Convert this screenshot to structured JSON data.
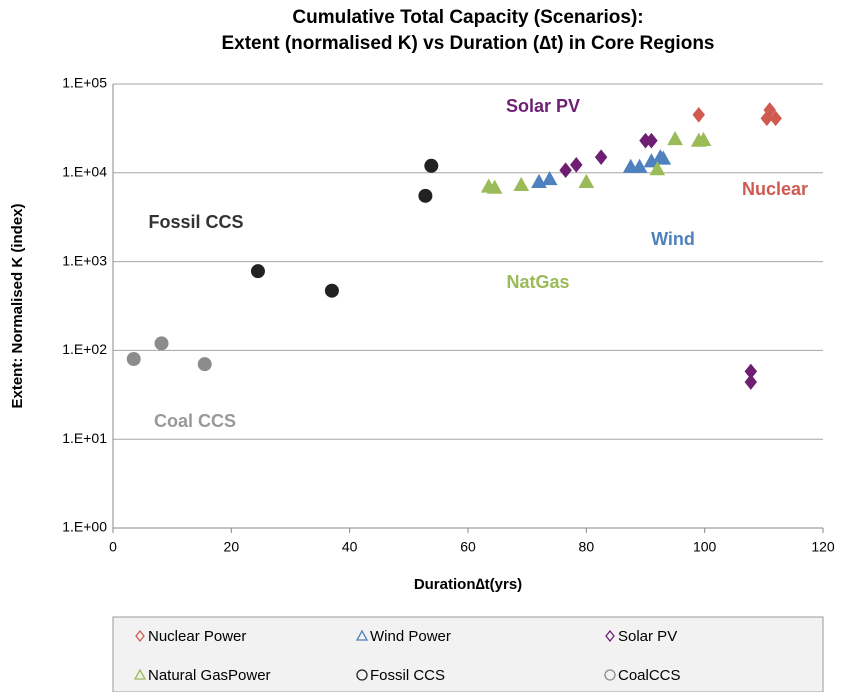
{
  "chart_data": {
    "type": "scatter",
    "title": [
      "Cumulative Total Capacity (Scenarios):",
      "Extent (normalised K) vs Duration (∆t) in Core Regions"
    ],
    "x_label": "Duration∆t(yrs)",
    "y_label": "Extent:  Normalised K (index)",
    "xlim": [
      0,
      120
    ],
    "xticks": [
      0,
      20,
      40,
      60,
      80,
      100,
      120
    ],
    "ylim": [
      1,
      100000
    ],
    "y_scale": "log",
    "yticks": [
      {
        "value": 1,
        "label": "1.E+00"
      },
      {
        "value": 10,
        "label": "1.E+01"
      },
      {
        "value": 100,
        "label": "1.E+02"
      },
      {
        "value": 1000,
        "label": "1.E+03"
      },
      {
        "value": 10000,
        "label": "1.E+04"
      },
      {
        "value": 100000,
        "label": "1.E+05"
      }
    ],
    "grid": true,
    "legend": "bottom",
    "series": [
      {
        "name": "Nuclear Power",
        "color": "#cf5a50",
        "marker": "diamond",
        "x": [
          99,
          111,
          110.5,
          112
        ],
        "values": [
          45000,
          51000,
          41000,
          41000
        ]
      },
      {
        "name": "Wind Power",
        "color": "#4f81bd",
        "marker": "triangle",
        "x": [
          72,
          73.8,
          87.5,
          89,
          91,
          92.5,
          93
        ],
        "values": [
          7900,
          8500,
          11700,
          11700,
          13500,
          15000,
          14500
        ]
      },
      {
        "name": "Solar PV",
        "color": "#6e1f72",
        "marker": "diamond",
        "x": [
          76.5,
          78.3,
          82.5,
          90,
          91,
          107.8,
          107.8
        ],
        "values": [
          10700,
          12300,
          15000,
          23000,
          23000,
          58,
          44
        ]
      },
      {
        "name": "Natural GasPower",
        "color": "#9bbb59",
        "marker": "triangle",
        "x": [
          63.5,
          64.5,
          69,
          80,
          92,
          95,
          99,
          99.8
        ],
        "values": [
          7000,
          6800,
          7300,
          7900,
          11000,
          24000,
          23000,
          23500
        ]
      },
      {
        "name": "Fossil CCS",
        "color": "#222222",
        "marker": "circle",
        "x": [
          24.5,
          37,
          52.8,
          53.8
        ],
        "values": [
          780,
          470,
          5500,
          12000
        ]
      },
      {
        "name": "CoalCCS",
        "color": "#8c8c8c",
        "marker": "circle",
        "x": [
          3.5,
          8.2,
          15.5
        ],
        "values": [
          80,
          120,
          70
        ]
      }
    ],
    "annotations": [
      {
        "text": "Solar PV",
        "color": "#6e1f72"
      },
      {
        "text": "Nuclear",
        "color": "#cf5a50"
      },
      {
        "text": "Wind",
        "color": "#4f81bd"
      },
      {
        "text": "Fossil CCS",
        "color": "#333333"
      },
      {
        "text": "NatGas",
        "color": "#9bbb59"
      },
      {
        "text": "Coal CCS",
        "color": "#999999"
      }
    ]
  }
}
